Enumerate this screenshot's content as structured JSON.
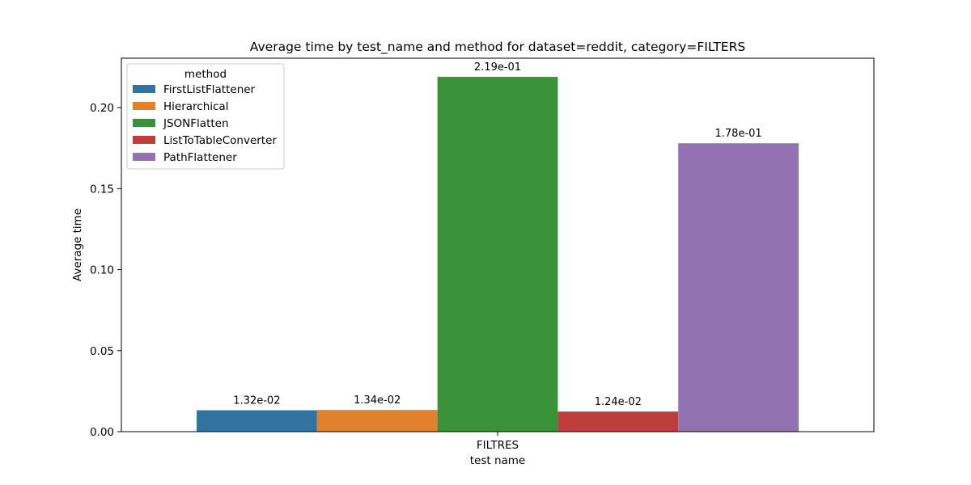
{
  "chart_data": {
    "type": "bar",
    "title": "Average time by test_name and method for dataset=reddit, category=FILTERS",
    "xlabel": "test name",
    "ylabel": "Average time",
    "categories": [
      "FILTRES"
    ],
    "ylim": [
      0,
      0.2305
    ],
    "yticks": [
      0.0,
      0.05,
      0.1,
      0.15,
      0.2
    ],
    "ytick_labels": [
      "0.00",
      "0.05",
      "0.10",
      "0.15",
      "0.20"
    ],
    "grid": false,
    "legend": {
      "title": "method",
      "placement": "top-left"
    },
    "series": [
      {
        "name": "FirstListFlattener",
        "values": [
          0.0132
        ],
        "label": "1.32e-02",
        "color": "#3274a1"
      },
      {
        "name": "Hierarchical",
        "values": [
          0.0134
        ],
        "label": "1.34e-02",
        "color": "#e1812c"
      },
      {
        "name": "JSONFlatten",
        "values": [
          0.219
        ],
        "label": "2.19e-01",
        "color": "#3a923a"
      },
      {
        "name": "ListToTableConverter",
        "values": [
          0.0124
        ],
        "label": "1.24e-02",
        "color": "#c03d3e"
      },
      {
        "name": "PathFlattener",
        "values": [
          0.178
        ],
        "label": "1.78e-01",
        "color": "#9372b2"
      }
    ]
  }
}
